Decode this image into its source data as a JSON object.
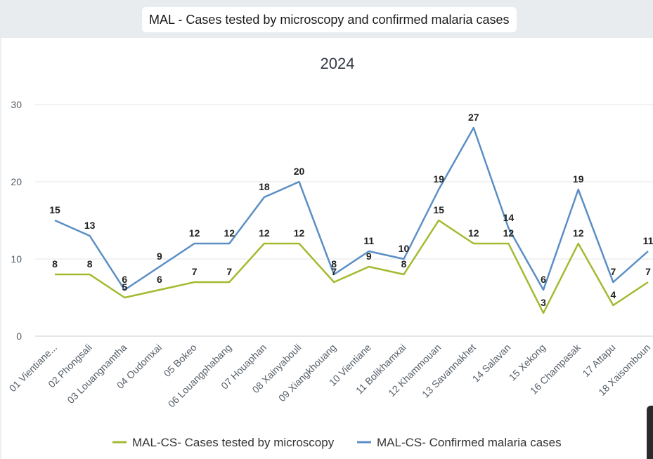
{
  "header": {
    "title": "MAL - Cases tested by microscopy and confirmed malaria cases"
  },
  "chart_data": {
    "type": "line",
    "title": "MAL - Cases tested by microscopy and confirmed malaria cases",
    "subtitle": "2024",
    "xlabel": "",
    "ylabel": "",
    "ylim": [
      0,
      30
    ],
    "yticks": [
      0,
      10,
      20,
      30
    ],
    "grid": true,
    "legend": "bottom",
    "categories": [
      "01 Vientiane...",
      "02 Phongsali",
      "03 Louangnamtha",
      "04 Oudomxai",
      "05 Bokeo",
      "06 Louangphabang",
      "07 Houaphan",
      "08 Xainyabouli",
      "09 Xiangkhouang",
      "10 Vientiane",
      "11 Bolikhamxai",
      "12 Khammouan",
      "13 Savannakhet",
      "14 Salavan",
      "15 Xekong",
      "16 Champasak",
      "17 Attapu",
      "18 Xaisomboun"
    ],
    "series": [
      {
        "name": "MAL-CS- Cases tested by microscopy",
        "color": "#a2bb30",
        "values": [
          8,
          8,
          5,
          6,
          7,
          7,
          12,
          12,
          7,
          9,
          8,
          15,
          12,
          12,
          3,
          12,
          4,
          7
        ]
      },
      {
        "name": "MAL-CS- Confirmed malaria cases",
        "color": "#5b8fc4",
        "values": [
          15,
          13,
          6,
          9,
          12,
          12,
          18,
          20,
          8,
          11,
          10,
          19,
          27,
          14,
          6,
          19,
          7,
          11
        ]
      }
    ]
  }
}
